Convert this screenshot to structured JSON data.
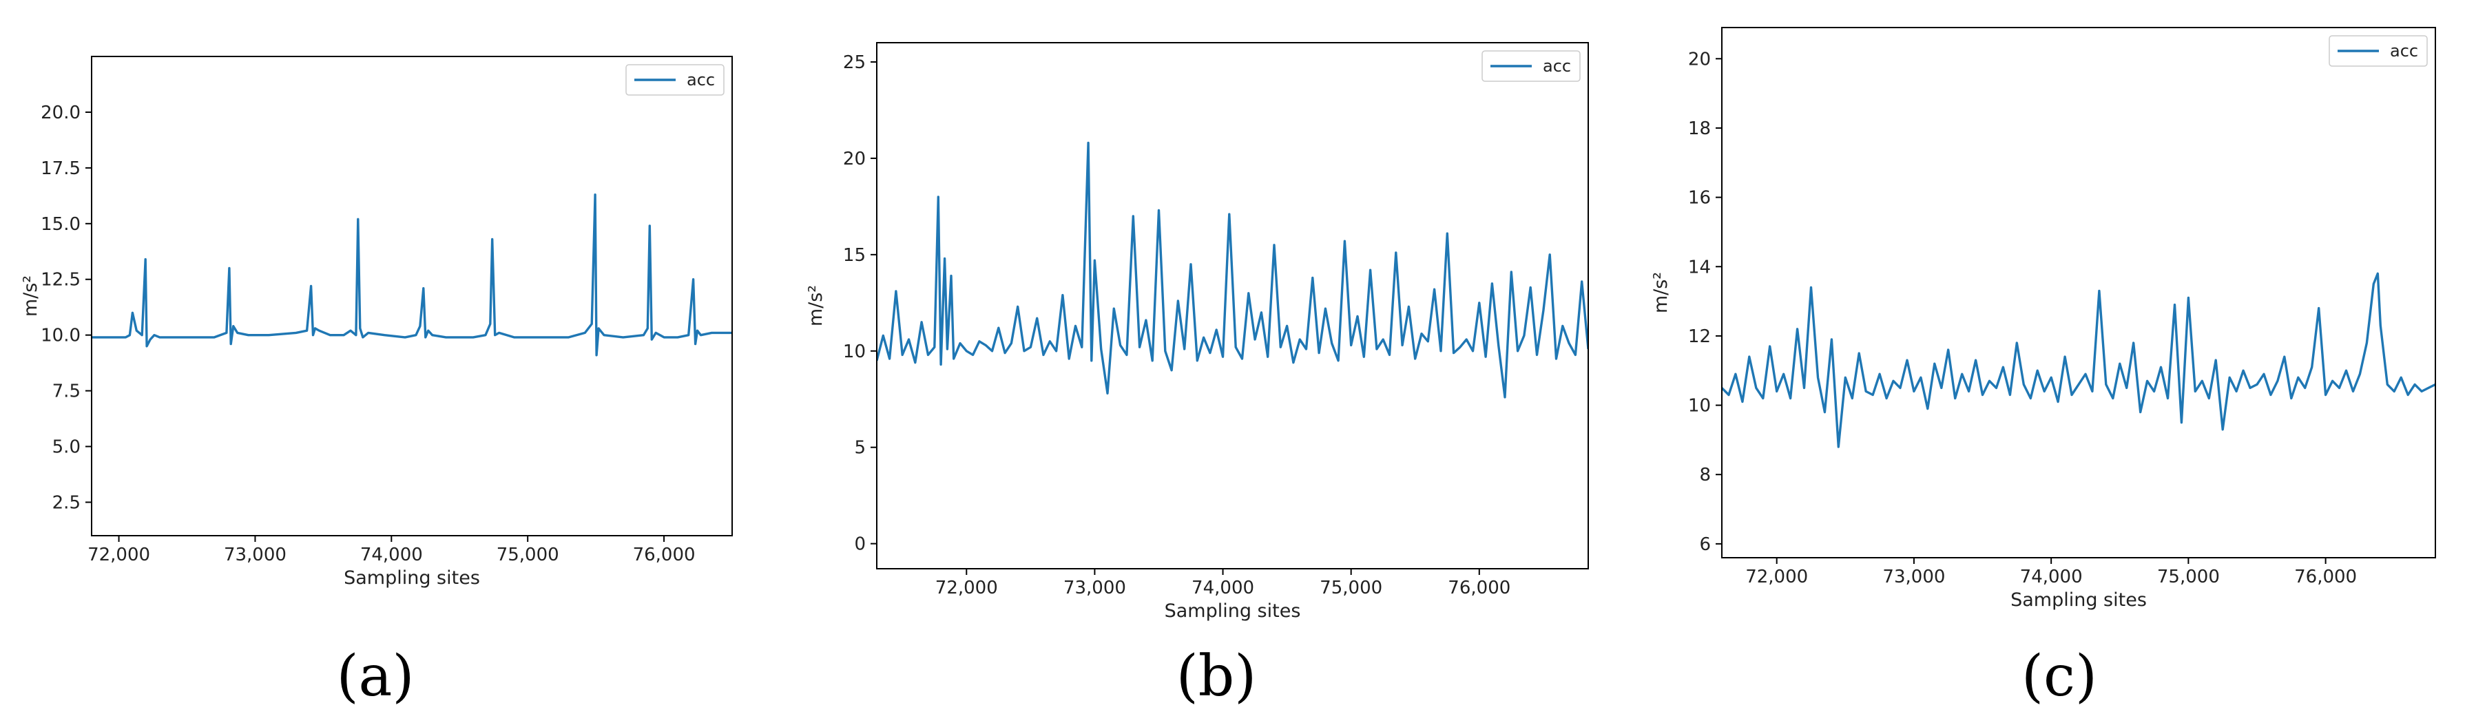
{
  "figure": {
    "panels": [
      "(a)",
      "(b)",
      "(c)"
    ]
  },
  "colors": {
    "series": "#1f77b4",
    "axes": "#000000",
    "background": "#ffffff"
  },
  "chart_data": [
    {
      "type": "line",
      "panel_label": "(a)",
      "xlabel": "Sampling sites",
      "ylabel": "m/s²",
      "xlim": [
        71800,
        76500
      ],
      "ylim": [
        1.0,
        22.5
      ],
      "xticks": [
        72000,
        73000,
        74000,
        75000,
        76000
      ],
      "xtick_labels": [
        "72,000",
        "73,000",
        "74,000",
        "75,000",
        "76,000"
      ],
      "yticks": [
        2.5,
        5.0,
        7.5,
        10.0,
        12.5,
        15.0,
        17.5,
        20.0
      ],
      "ytick_labels": [
        "2.5",
        "5.0",
        "7.5",
        "10.0",
        "12.5",
        "15.0",
        "17.5",
        "20.0"
      ],
      "legend": {
        "entries": [
          "acc"
        ],
        "placement": "top-right"
      },
      "grid": false,
      "series": [
        {
          "name": "acc",
          "x": [
            71800,
            72000,
            72050,
            72080,
            72100,
            72130,
            72170,
            72195,
            72205,
            72230,
            72260,
            72300,
            72500,
            72700,
            72790,
            72810,
            72822,
            72840,
            72870,
            72950,
            73100,
            73300,
            73380,
            73410,
            73425,
            73440,
            73470,
            73550,
            73650,
            73700,
            73740,
            73755,
            73770,
            73790,
            73830,
            73950,
            74100,
            74180,
            74210,
            74235,
            74250,
            74270,
            74300,
            74400,
            74600,
            74690,
            74725,
            74740,
            74760,
            74790,
            74900,
            75100,
            75300,
            75420,
            75470,
            75495,
            75505,
            75520,
            75560,
            75700,
            75850,
            75880,
            75895,
            75910,
            75940,
            76000,
            76100,
            76180,
            76215,
            76230,
            76245,
            76270,
            76350,
            76500
          ],
          "y": [
            9.9,
            9.9,
            9.9,
            10.0,
            11.0,
            10.2,
            10.0,
            13.4,
            9.5,
            9.8,
            10.0,
            9.9,
            9.9,
            9.9,
            10.1,
            13.0,
            9.6,
            10.4,
            10.1,
            10.0,
            10.0,
            10.1,
            10.2,
            12.2,
            10.0,
            10.3,
            10.2,
            10.0,
            10.0,
            10.2,
            10.0,
            15.2,
            10.3,
            9.9,
            10.1,
            10.0,
            9.9,
            10.0,
            10.4,
            12.1,
            9.9,
            10.2,
            10.0,
            9.9,
            9.9,
            10.0,
            10.5,
            14.3,
            10.0,
            10.1,
            9.9,
            9.9,
            9.9,
            10.1,
            10.5,
            16.3,
            9.1,
            10.3,
            10.0,
            9.9,
            10.0,
            10.3,
            14.9,
            9.8,
            10.1,
            9.9,
            9.9,
            10.0,
            12.5,
            9.6,
            10.2,
            10.0,
            10.1,
            10.1
          ]
        }
      ]
    },
    {
      "type": "line",
      "panel_label": "(b)",
      "xlabel": "Sampling sites",
      "ylabel": "m/s²",
      "xlim": [
        71300,
        76850
      ],
      "ylim": [
        -1.3,
        26.0
      ],
      "xticks": [
        72000,
        73000,
        74000,
        75000,
        76000
      ],
      "xtick_labels": [
        "72,000",
        "73,000",
        "74,000",
        "75,000",
        "76,000"
      ],
      "yticks": [
        0,
        5,
        10,
        15,
        20,
        25
      ],
      "ytick_labels": [
        "0",
        "5",
        "10",
        "15",
        "20",
        "25"
      ],
      "legend": {
        "entries": [
          "acc"
        ],
        "placement": "top-right"
      },
      "grid": false,
      "series": [
        {
          "name": "acc",
          "x": [
            71300,
            71350,
            71400,
            71450,
            71500,
            71550,
            71600,
            71650,
            71700,
            71750,
            71780,
            71800,
            71830,
            71850,
            71880,
            71900,
            71950,
            72000,
            72050,
            72100,
            72150,
            72200,
            72250,
            72300,
            72350,
            72400,
            72450,
            72500,
            72550,
            72600,
            72650,
            72700,
            72750,
            72800,
            72850,
            72900,
            72950,
            72975,
            73000,
            73050,
            73100,
            73150,
            73200,
            73250,
            73300,
            73350,
            73400,
            73450,
            73500,
            73550,
            73600,
            73650,
            73700,
            73750,
            73800,
            73850,
            73900,
            73950,
            74000,
            74050,
            74100,
            74150,
            74200,
            74250,
            74300,
            74350,
            74400,
            74450,
            74500,
            74550,
            74600,
            74650,
            74700,
            74750,
            74800,
            74850,
            74900,
            74950,
            75000,
            75050,
            75100,
            75150,
            75200,
            75250,
            75300,
            75350,
            75400,
            75450,
            75500,
            75550,
            75600,
            75650,
            75700,
            75750,
            75800,
            75850,
            75900,
            75950,
            76000,
            76050,
            76100,
            76150,
            76200,
            76250,
            76300,
            76350,
            76400,
            76450,
            76500,
            76550,
            76600,
            76650,
            76700,
            76750,
            76800,
            76850
          ],
          "y": [
            9.5,
            10.8,
            9.6,
            13.1,
            9.8,
            10.6,
            9.4,
            11.5,
            9.8,
            10.2,
            18.0,
            9.3,
            14.8,
            10.1,
            13.9,
            9.6,
            10.4,
            10.0,
            9.8,
            10.5,
            10.3,
            10.0,
            11.2,
            9.9,
            10.4,
            12.3,
            10.0,
            10.2,
            11.7,
            9.8,
            10.5,
            10.0,
            12.9,
            9.6,
            11.3,
            10.2,
            20.8,
            9.5,
            14.7,
            10.1,
            7.8,
            12.2,
            10.3,
            9.8,
            17.0,
            10.2,
            11.6,
            9.5,
            17.3,
            10.0,
            9.0,
            12.6,
            10.1,
            14.5,
            9.5,
            10.7,
            9.9,
            11.1,
            9.7,
            17.1,
            10.2,
            9.6,
            13.0,
            10.6,
            12.0,
            9.7,
            15.5,
            10.2,
            11.3,
            9.4,
            10.6,
            10.1,
            13.8,
            9.9,
            12.2,
            10.4,
            9.5,
            15.7,
            10.3,
            11.8,
            9.7,
            14.2,
            10.1,
            10.6,
            9.8,
            15.1,
            10.3,
            12.3,
            9.6,
            10.9,
            10.5,
            13.2,
            10.0,
            16.1,
            9.9,
            10.2,
            10.6,
            10.0,
            12.5,
            9.7,
            13.5,
            10.3,
            7.6,
            14.1,
            10.0,
            10.8,
            13.3,
            9.8,
            12.1,
            15.0,
            9.6,
            11.3,
            10.4,
            9.8,
            13.6,
            10.1
          ]
        }
      ]
    },
    {
      "type": "line",
      "panel_label": "(c)",
      "xlabel": "Sampling sites",
      "ylabel": "m/s²",
      "xlim": [
        71600,
        76800
      ],
      "ylim": [
        5.6,
        20.9
      ],
      "xticks": [
        72000,
        73000,
        74000,
        75000,
        76000
      ],
      "xtick_labels": [
        "72,000",
        "73,000",
        "74,000",
        "75,000",
        "76,000"
      ],
      "yticks": [
        6,
        8,
        10,
        12,
        14,
        16,
        18,
        20
      ],
      "ytick_labels": [
        "6",
        "8",
        "10",
        "12",
        "14",
        "16",
        "18",
        "20"
      ],
      "legend": {
        "entries": [
          "acc"
        ],
        "placement": "top-right"
      },
      "grid": false,
      "series": [
        {
          "name": "acc",
          "x": [
            71600,
            71650,
            71700,
            71750,
            71800,
            71850,
            71900,
            71950,
            72000,
            72050,
            72100,
            72150,
            72200,
            72250,
            72300,
            72350,
            72400,
            72450,
            72500,
            72550,
            72600,
            72650,
            72700,
            72750,
            72800,
            72850,
            72900,
            72950,
            73000,
            73050,
            73100,
            73150,
            73200,
            73250,
            73300,
            73350,
            73400,
            73450,
            73500,
            73550,
            73600,
            73650,
            73700,
            73750,
            73800,
            73850,
            73900,
            73950,
            74000,
            74050,
            74100,
            74150,
            74200,
            74250,
            74300,
            74350,
            74400,
            74450,
            74500,
            74550,
            74600,
            74650,
            74700,
            74750,
            74800,
            74850,
            74900,
            74950,
            75000,
            75050,
            75100,
            75150,
            75200,
            75250,
            75300,
            75350,
            75400,
            75450,
            75500,
            75550,
            75600,
            75650,
            75700,
            75750,
            75800,
            75850,
            75900,
            75950,
            76000,
            76050,
            76100,
            76150,
            76200,
            76250,
            76300,
            76350,
            76380,
            76400,
            76450,
            76500,
            76550,
            76600,
            76650,
            76700,
            76750,
            76800
          ],
          "y": [
            10.5,
            10.3,
            10.9,
            10.1,
            11.4,
            10.5,
            10.2,
            11.7,
            10.4,
            10.9,
            10.2,
            12.2,
            10.5,
            13.4,
            10.8,
            9.8,
            11.9,
            8.8,
            10.8,
            10.2,
            11.5,
            10.4,
            10.3,
            10.9,
            10.2,
            10.7,
            10.5,
            11.3,
            10.4,
            10.8,
            9.9,
            11.2,
            10.5,
            11.6,
            10.2,
            10.9,
            10.4,
            11.3,
            10.3,
            10.7,
            10.5,
            11.1,
            10.3,
            11.8,
            10.6,
            10.2,
            11.0,
            10.4,
            10.8,
            10.1,
            11.4,
            10.3,
            10.6,
            10.9,
            10.4,
            13.3,
            10.6,
            10.2,
            11.2,
            10.5,
            11.8,
            9.8,
            10.7,
            10.4,
            11.1,
            10.2,
            12.9,
            9.5,
            13.1,
            10.4,
            10.7,
            10.2,
            11.3,
            9.3,
            10.8,
            10.4,
            11.0,
            10.5,
            10.6,
            10.9,
            10.3,
            10.7,
            11.4,
            10.2,
            10.8,
            10.5,
            11.1,
            12.8,
            10.3,
            10.7,
            10.5,
            11.0,
            10.4,
            10.9,
            11.8,
            13.5,
            13.8,
            12.3,
            10.6,
            10.4,
            10.8,
            10.3,
            10.6,
            10.4,
            10.5,
            10.6
          ]
        }
      ]
    }
  ]
}
